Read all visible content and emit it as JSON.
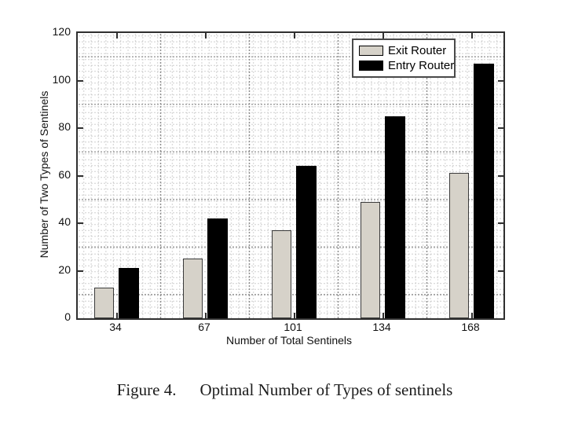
{
  "figure": {
    "caption_label": "Figure 4.",
    "caption_text": "Optimal Number of Types of sentinels"
  },
  "chart_data": {
    "type": "bar",
    "title": "",
    "xlabel": "Number of Total Sentinels",
    "ylabel": "Number of Two Types of Sentinels",
    "categories": [
      "34",
      "67",
      "101",
      "134",
      "168"
    ],
    "series": [
      {
        "name": "Exit Router",
        "color": "#d6d2c9",
        "values": [
          13,
          25,
          37,
          49,
          61
        ]
      },
      {
        "name": "Entry Router",
        "color": "#000000",
        "values": [
          21,
          42,
          64,
          85,
          107
        ]
      }
    ],
    "ylim": [
      0,
      120
    ],
    "yticks": [
      0,
      20,
      40,
      60,
      80,
      100,
      120
    ],
    "grid": "dotted major + minor, both axes",
    "legend_position": "upper right inside plot"
  }
}
